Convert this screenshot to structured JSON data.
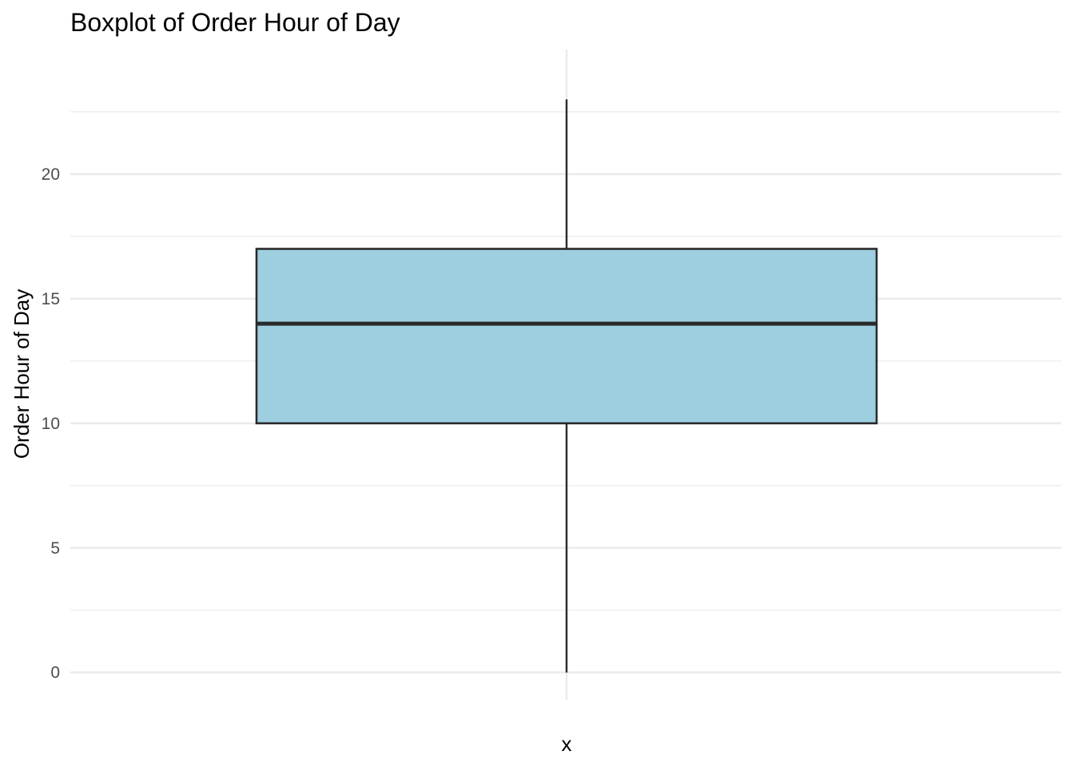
{
  "chart_data": {
    "type": "boxplot",
    "title": "Boxplot of Order Hour of Day",
    "xlabel": "x",
    "ylabel": "Order Hour of Day",
    "ylim": [
      -1.1,
      25
    ],
    "yticks": [
      0,
      5,
      10,
      15,
      20
    ],
    "yminor": [
      2.5,
      7.5,
      12.5,
      17.5,
      22.5
    ],
    "grid": true,
    "box": {
      "min": 0,
      "q1": 10,
      "median": 14,
      "q3": 17,
      "max": 23
    },
    "colors": {
      "fill": "#9ecfe0",
      "stroke": "#2a2a2a"
    }
  }
}
